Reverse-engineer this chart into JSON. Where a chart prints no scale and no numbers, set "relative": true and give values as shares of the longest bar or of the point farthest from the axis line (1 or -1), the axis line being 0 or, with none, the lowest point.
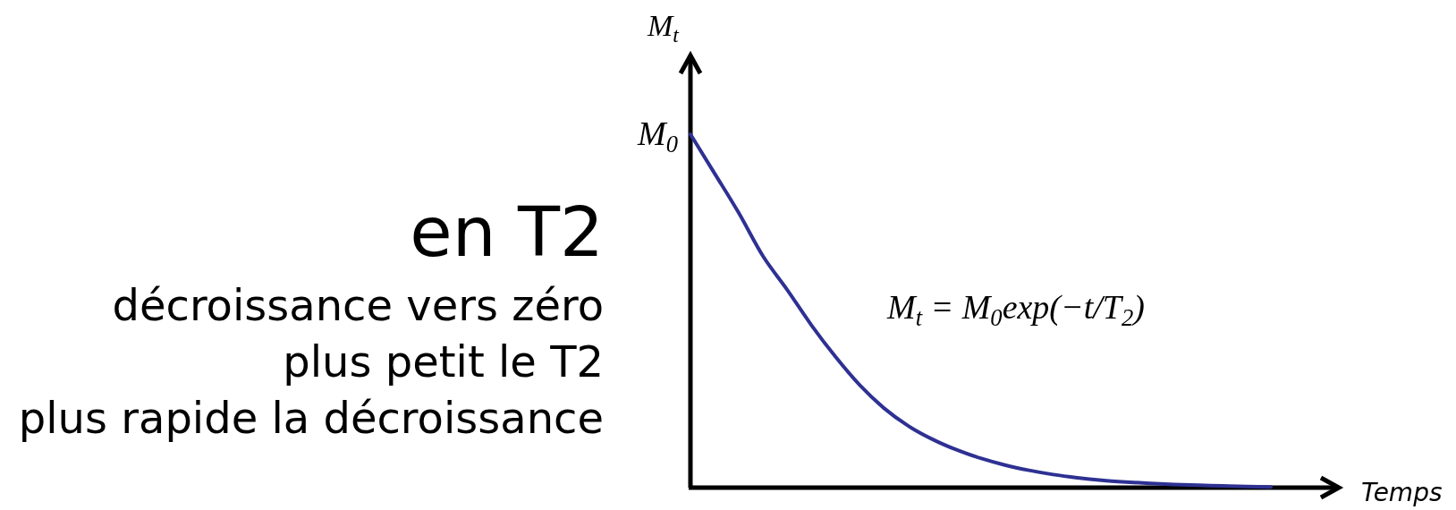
{
  "chart_data": {
    "type": "line",
    "title": "en T2",
    "xlabel": "Temps",
    "ylabel": "M$_{t}$",
    "relative": true,
    "categories": [
      null,
      null,
      null,
      null,
      null,
      null,
      null,
      null,
      null,
      null,
      null,
      null,
      null,
      null,
      null,
      null,
      null,
      null,
      null,
      null,
      null,
      null,
      null,
      null,
      null
    ],
    "values": [
      1.0,
      0.889,
      0.777,
      0.655,
      0.56,
      0.46,
      0.37,
      0.29,
      0.225,
      0.175,
      0.137,
      0.107,
      0.083,
      0.064,
      0.049,
      0.037,
      0.028,
      0.021,
      0.016,
      0.012,
      0.009,
      0.007,
      0.005,
      0.003,
      0.002
    ],
    "color": "#2e3192",
    "annotations": [
      "décroissance vers zéro",
      "plus petit le T2",
      "plus rapide la décroissance",
      "M$_{0}$",
      "M$_{t}$ = M$_{0}$exp(−t/T$_{2}$)"
    ]
  }
}
